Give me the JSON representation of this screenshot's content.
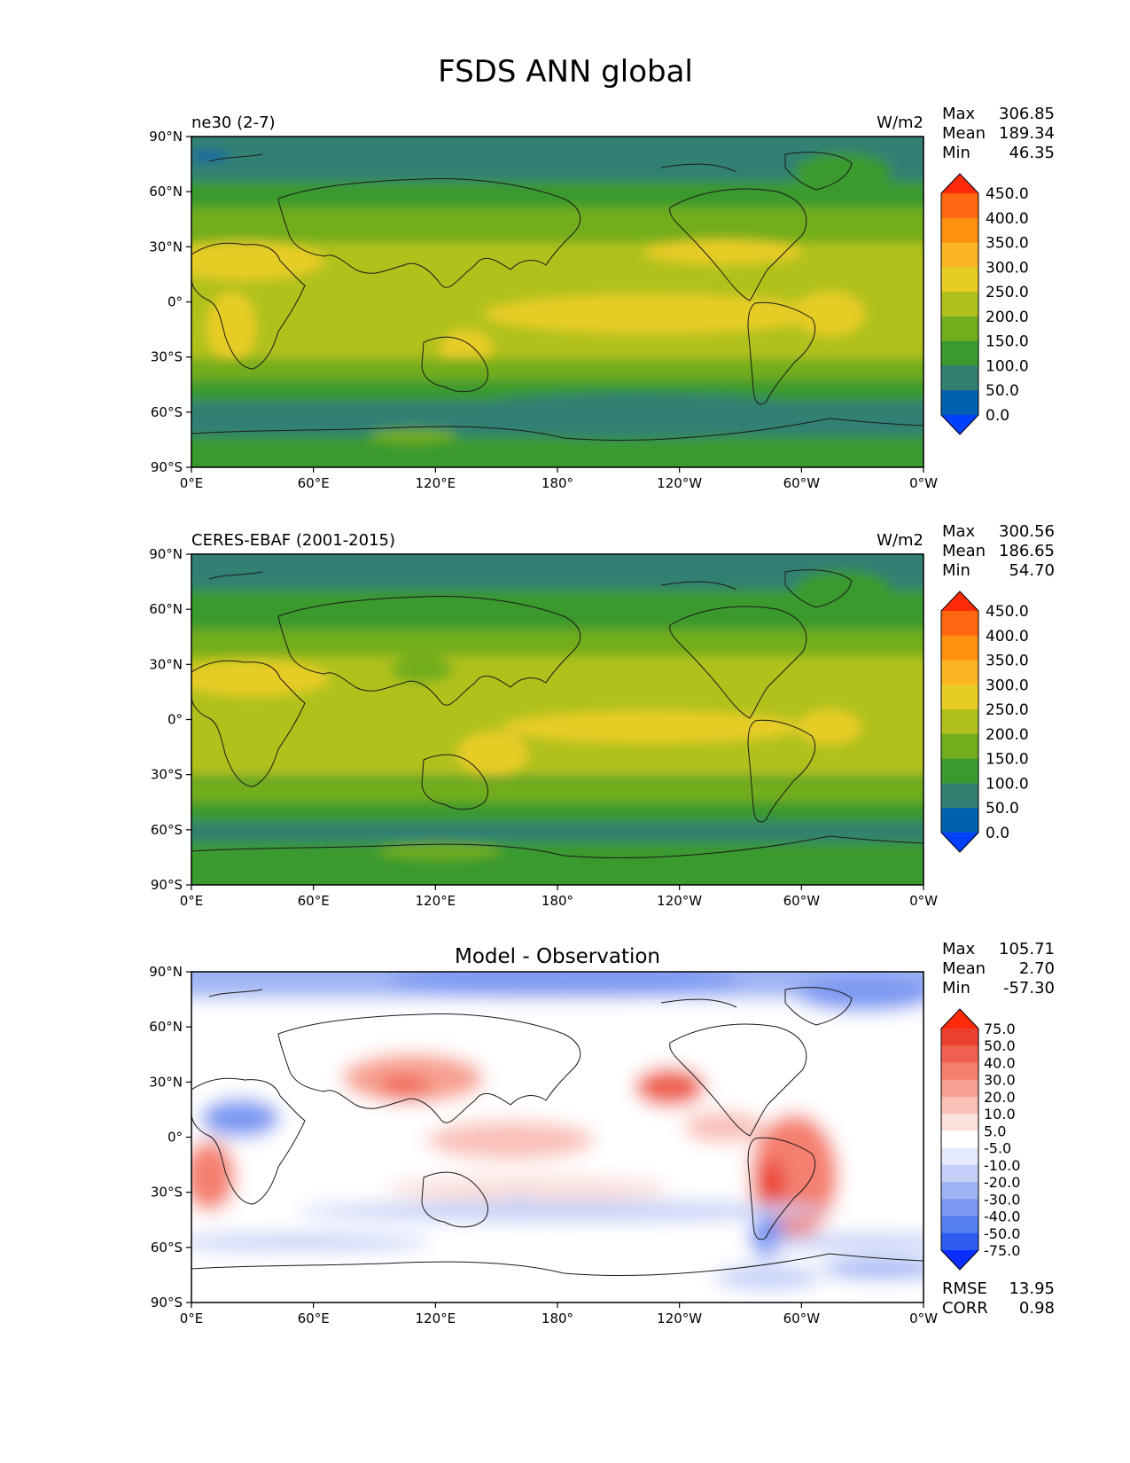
{
  "figure": {
    "title": "FSDS ANN global"
  },
  "axes": {
    "lat_ticks": [
      "90°N",
      "60°N",
      "30°N",
      "0°",
      "30°S",
      "60°S",
      "90°S"
    ],
    "lon_ticks": [
      "0°E",
      "60°E",
      "120°E",
      "180°",
      "120°W",
      "60°W",
      "0°W"
    ]
  },
  "colors": {
    "abs_levels": [
      "#0040ff",
      "#0061b0",
      "#338073",
      "#3a9a2e",
      "#72ad1e",
      "#b0c11e",
      "#e8cc26",
      "#fbb525",
      "#ff9010",
      "#ff6710",
      "#ff2a0a"
    ],
    "diff_levels": [
      "#0a2eff",
      "#2e5cf0",
      "#5480f2",
      "#7a98f2",
      "#9fb4f4",
      "#c4d0f8",
      "#e4e9fb",
      "#ffffff",
      "#fbe0dc",
      "#f9c0b8",
      "#f7a090",
      "#f58070",
      "#f06050",
      "#ea4030",
      "#ff2a0a"
    ]
  },
  "panels": [
    {
      "label_left": "ne30 (2-7)",
      "label_center": "",
      "units": "W/m2",
      "stats": [
        {
          "name": "Max",
          "value": "306.85"
        },
        {
          "name": "Mean",
          "value": "189.34"
        },
        {
          "name": "Min",
          "value": "46.35"
        }
      ],
      "colorbar_labels": [
        "450.0",
        "400.0",
        "350.0",
        "300.0",
        "250.0",
        "200.0",
        "150.0",
        "100.0",
        "50.0",
        "0.0"
      ],
      "extra_stats": []
    },
    {
      "label_left": "CERES-EBAF (2001-2015)",
      "label_center": "",
      "units": "W/m2",
      "stats": [
        {
          "name": "Max",
          "value": "300.56"
        },
        {
          "name": "Mean",
          "value": "186.65"
        },
        {
          "name": "Min",
          "value": "54.70"
        }
      ],
      "colorbar_labels": [
        "450.0",
        "400.0",
        "350.0",
        "300.0",
        "250.0",
        "200.0",
        "150.0",
        "100.0",
        "50.0",
        "0.0"
      ],
      "extra_stats": []
    },
    {
      "label_left": "",
      "label_center": "Model - Observation",
      "units": "",
      "stats": [
        {
          "name": "Max",
          "value": "105.71"
        },
        {
          "name": "Mean",
          "value": "2.70"
        },
        {
          "name": "Min",
          "value": "-57.30"
        }
      ],
      "colorbar_labels": [
        "75.0",
        "50.0",
        "40.0",
        "30.0",
        "20.0",
        "10.0",
        "5.0",
        "-5.0",
        "-10.0",
        "-20.0",
        "-30.0",
        "-40.0",
        "-50.0",
        "-75.0"
      ],
      "extra_stats": [
        {
          "name": "RMSE",
          "value": "13.95"
        },
        {
          "name": "CORR",
          "value": "0.98"
        }
      ]
    }
  ]
}
